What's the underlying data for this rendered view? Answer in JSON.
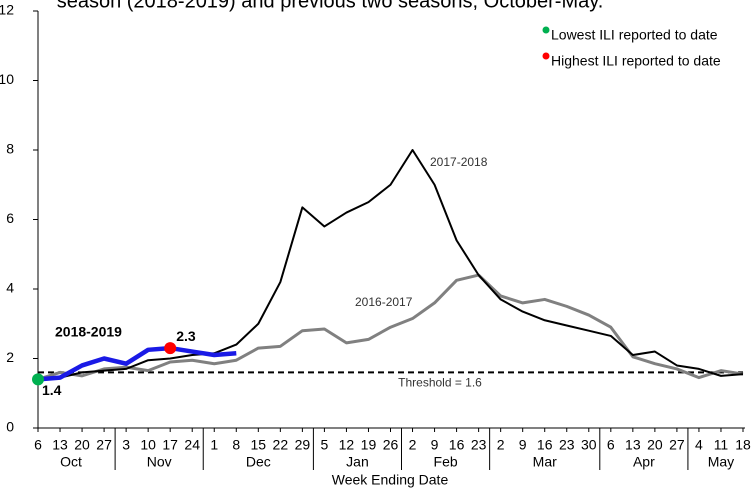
{
  "chart_data": {
    "type": "line",
    "title": "season (2018-2019) and previous two seasons, October-May.",
    "x_label": "Week Ending Date",
    "categories": [
      "6",
      "13",
      "20",
      "27",
      "3",
      "10",
      "17",
      "24",
      "1",
      "8",
      "15",
      "22",
      "29",
      "5",
      "12",
      "19",
      "26",
      "2",
      "9",
      "16",
      "23",
      "2",
      "9",
      "16",
      "23",
      "30",
      "6",
      "13",
      "20",
      "27",
      "4",
      "11",
      "18"
    ],
    "months": [
      "Oct",
      "Oct",
      "Oct",
      "Oct",
      "Nov",
      "Nov",
      "Nov",
      "Nov",
      "Dec",
      "Dec",
      "Dec",
      "Dec",
      "Dec",
      "Jan",
      "Jan",
      "Jan",
      "Jan",
      "Feb",
      "Feb",
      "Feb",
      "Feb",
      "Mar",
      "Mar",
      "Mar",
      "Mar",
      "Mar",
      "Apr",
      "Apr",
      "Apr",
      "Apr",
      "May",
      "May",
      "May"
    ],
    "ylim": [
      0,
      12
    ],
    "yticks": [
      0,
      2,
      4,
      6,
      8,
      10,
      12
    ],
    "grid": false,
    "series": [
      {
        "name": "2017-2018",
        "color": "#000000",
        "values": [
          1.4,
          1.45,
          1.6,
          1.65,
          1.7,
          1.95,
          2.0,
          2.1,
          2.15,
          2.4,
          3.0,
          4.2,
          6.35,
          5.8,
          6.2,
          6.5,
          7.0,
          8.0,
          7.0,
          5.4,
          4.4,
          3.7,
          3.35,
          3.1,
          2.95,
          2.8,
          2.65,
          2.1,
          2.2,
          1.8,
          1.7,
          1.5,
          1.55
        ]
      },
      {
        "name": "2016-2017",
        "color": "#808080",
        "values": [
          1.4,
          1.6,
          1.5,
          1.7,
          1.75,
          1.65,
          1.9,
          1.95,
          1.85,
          1.95,
          2.3,
          2.35,
          2.8,
          2.85,
          2.45,
          2.55,
          2.9,
          3.15,
          3.6,
          4.25,
          4.4,
          3.8,
          3.6,
          3.7,
          3.5,
          3.25,
          2.9,
          2.05,
          1.85,
          1.7,
          1.45,
          1.65,
          1.55
        ]
      },
      {
        "name": "2018-2019",
        "color": "#1a1ae6",
        "values": [
          1.4,
          1.45,
          1.8,
          2.0,
          1.85,
          2.25,
          2.3,
          2.2,
          2.1,
          2.15,
          null,
          null,
          null,
          null,
          null,
          null,
          null,
          null,
          null,
          null,
          null,
          null,
          null,
          null,
          null,
          null,
          null,
          null,
          null,
          null,
          null,
          null,
          null
        ]
      }
    ],
    "threshold": {
      "value": 1.6,
      "label": "Threshold = 1.6"
    },
    "markers": [
      {
        "name": "Lowest ILI reported to date",
        "color": "#00b050",
        "value": 1.4,
        "value_label": "1.4"
      },
      {
        "name": "Highest ILI reported to date",
        "color": "#ff0000",
        "value": 2.3,
        "value_label": "2.3"
      }
    ],
    "legend": "top-right"
  }
}
